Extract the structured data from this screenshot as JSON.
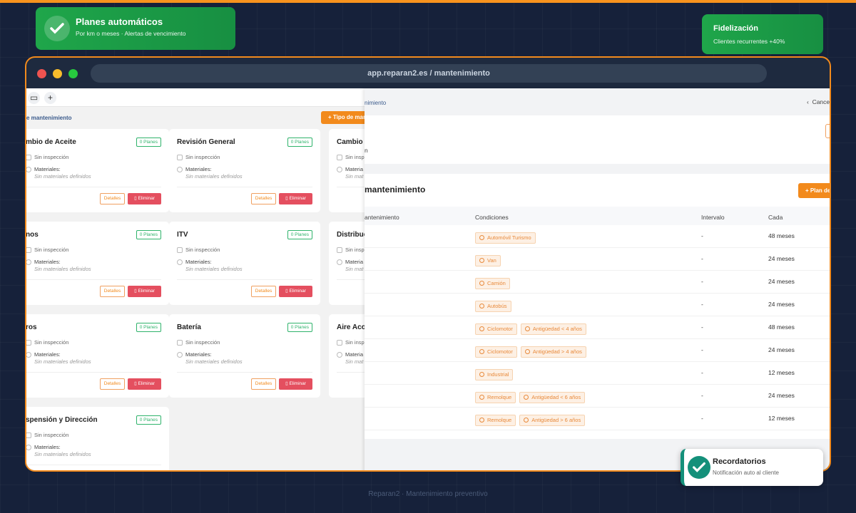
{
  "colors": {
    "accent": "#f28a1c",
    "success": "#1fa64a",
    "danger": "#e44f5f"
  },
  "toasts": {
    "planes": {
      "title": "Planes automáticos",
      "subtitle": "Por km o meses · Alertas de vencimiento",
      "icon": "check-icon"
    },
    "fidelizacion": {
      "title": "Fidelización",
      "subtitle": "Clientes recurrentes +40%"
    },
    "recordatorios": {
      "title": "Recordatorios",
      "subtitle": "Notificación auto al cliente",
      "icon": "check-icon"
    }
  },
  "browser": {
    "url": "app.reparan2.es / mantenimiento"
  },
  "left": {
    "toolbar": {
      "calendar_icon": "calendar-icon",
      "add_label": "+"
    },
    "breadcrumb": "e mantenimiento",
    "add_button": "+ Tipo de mar",
    "cards": [
      {
        "name": "mbio de Aceite",
        "badge": "0 Planes",
        "inspection": "Sin inspección",
        "materials_label": "Materiales:",
        "materials": "Sin materiales definidos",
        "details": "Detalles",
        "delete": "Eliminar"
      },
      {
        "name": "Revisión General",
        "badge": "0 Planes",
        "inspection": "Sin inspección",
        "materials_label": "Materiales:",
        "materials": "Sin materiales definidos",
        "details": "Detalles",
        "delete": "Eliminar"
      },
      {
        "name": "Cambio d",
        "badge": "",
        "inspection": "Sin insp",
        "materials_label": "Materia",
        "materials": "Sin mat",
        "details": "",
        "delete": ""
      },
      {
        "name": "nos",
        "badge": "0 Planes",
        "inspection": "Sin inspección",
        "materials_label": "Materiales:",
        "materials": "Sin materiales definidos",
        "details": "Detalles",
        "delete": "Eliminar"
      },
      {
        "name": "ITV",
        "badge": "0 Planes",
        "inspection": "Sin inspección",
        "materials_label": "Materiales:",
        "materials": "Sin materiales definidos",
        "details": "Detalles",
        "delete": "Eliminar"
      },
      {
        "name": "Distribuc",
        "badge": "",
        "inspection": "Sin insp",
        "materials_label": "Materia",
        "materials": "Sin mat",
        "details": "",
        "delete": ""
      },
      {
        "name": "ros",
        "badge": "0 Planes",
        "inspection": "Sin inspección",
        "materials_label": "Materiales:",
        "materials": "Sin materiales definidos",
        "details": "Detalles",
        "delete": "Eliminar"
      },
      {
        "name": "Batería",
        "badge": "0 Planes",
        "inspection": "Sin inspección",
        "materials_label": "Materiales:",
        "materials": "Sin materiales definidos",
        "details": "Detalles",
        "delete": "Eliminar"
      },
      {
        "name": "Aire Acoı",
        "badge": "",
        "inspection": "Sin insp",
        "materials_label": "Materia",
        "materials": "Sin mat",
        "details": "",
        "delete": ""
      },
      {
        "name": "spensión y Dirección",
        "badge": "0 Planes",
        "inspection": "Sin inspección",
        "materials_label": "Materiales:",
        "materials": "Sin materiales definidos",
        "details": "",
        "delete": ""
      }
    ]
  },
  "right": {
    "breadcrumb": "nimiento",
    "cancel": "Cance",
    "info_fragment": "n",
    "section_title": "mantenimiento",
    "add_plan_button": "+ Plan de man",
    "columns": [
      "antenimiento",
      "Condiciones",
      "Intervalo",
      "Cada"
    ],
    "rows": [
      {
        "conditions": [
          "Automóvil Turismo"
        ],
        "interval": "-",
        "every": "48 meses"
      },
      {
        "conditions": [
          "Van"
        ],
        "interval": "-",
        "every": "24 meses"
      },
      {
        "conditions": [
          "Camión"
        ],
        "interval": "-",
        "every": "24 meses"
      },
      {
        "conditions": [
          "Autobús"
        ],
        "interval": "-",
        "every": "24 meses"
      },
      {
        "conditions": [
          "Ciclomotor",
          "Antigüedad < 4 años"
        ],
        "interval": "-",
        "every": "48 meses"
      },
      {
        "conditions": [
          "Ciclomotor",
          "Antigüedad > 4 años"
        ],
        "interval": "-",
        "every": "24 meses"
      },
      {
        "conditions": [
          "Industrial"
        ],
        "interval": "-",
        "every": "12 meses"
      },
      {
        "conditions": [
          "Remolque",
          "Antigüedad < 6 años"
        ],
        "interval": "-",
        "every": "24 meses"
      },
      {
        "conditions": [
          "Remolque",
          "Antigüedad > 6 años"
        ],
        "interval": "-",
        "every": "12 meses"
      }
    ]
  },
  "footer": "Reparan2 · Mantenimiento preventivo"
}
